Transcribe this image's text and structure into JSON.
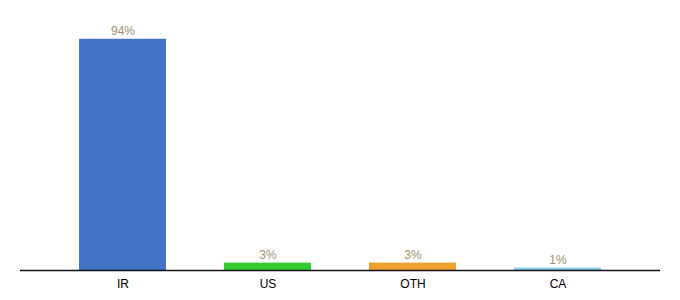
{
  "chart_data": {
    "type": "bar",
    "categories": [
      "IR",
      "US",
      "OTH",
      "CA"
    ],
    "values": [
      94,
      3,
      3,
      1
    ],
    "value_labels": [
      "94%",
      "3%",
      "3%",
      "1%"
    ],
    "colors": [
      "#4472c4",
      "#33cc33",
      "#f0a030",
      "#87ceeb"
    ],
    "ylim": [
      0,
      100
    ],
    "data_labels": true,
    "tick_labels": "x",
    "grid": false
  }
}
